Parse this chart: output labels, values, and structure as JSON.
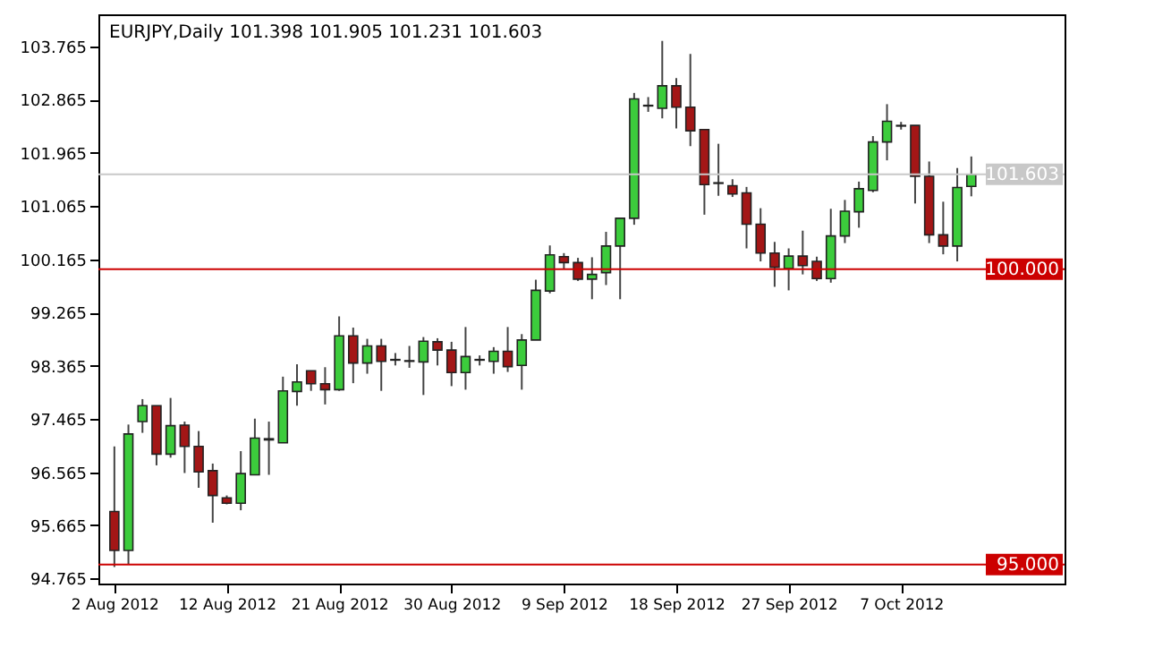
{
  "chart_data": {
    "type": "candlestick",
    "title": "EURJPY,Daily  101.398 101.905 101.231 101.603",
    "categories": [
      "2 Aug 2012",
      null,
      null,
      null,
      null,
      null,
      null,
      null,
      "12 Aug 2012",
      null,
      null,
      null,
      null,
      null,
      null,
      null,
      "21 Aug 2012",
      null,
      null,
      null,
      null,
      null,
      null,
      null,
      "30 Aug 2012",
      null,
      null,
      null,
      null,
      null,
      null,
      null,
      "9 Sep 2012",
      null,
      null,
      null,
      null,
      null,
      null,
      null,
      "18 Sep 2012",
      null,
      null,
      null,
      null,
      null,
      null,
      null,
      "27 Sep 2012",
      null,
      null,
      null,
      null,
      null,
      null,
      null,
      "7 Oct 2012",
      null,
      null,
      null,
      null,
      null
    ],
    "ohlc": [
      [
        95.9,
        97.0,
        94.96,
        95.24
      ],
      [
        95.24,
        97.37,
        95.0,
        97.21
      ],
      [
        97.42,
        97.8,
        97.23,
        97.69
      ],
      [
        97.69,
        97.69,
        96.68,
        96.87
      ],
      [
        96.87,
        97.82,
        96.81,
        97.35
      ],
      [
        97.36,
        97.42,
        96.55,
        97.0
      ],
      [
        97.0,
        97.26,
        96.3,
        96.57
      ],
      [
        96.59,
        96.71,
        95.71,
        96.17
      ],
      [
        96.13,
        96.17,
        96.02,
        96.04
      ],
      [
        96.04,
        96.92,
        95.92,
        96.54
      ],
      [
        96.52,
        97.47,
        96.52,
        97.14
      ],
      [
        97.11,
        97.42,
        96.52,
        97.13
      ],
      [
        97.06,
        98.18,
        97.06,
        97.94
      ],
      [
        97.93,
        98.39,
        97.69,
        98.09
      ],
      [
        98.28,
        98.28,
        97.94,
        98.06
      ],
      [
        98.06,
        98.34,
        97.71,
        97.96
      ],
      [
        97.96,
        99.2,
        97.94,
        98.87
      ],
      [
        98.87,
        99.01,
        98.07,
        98.41
      ],
      [
        98.41,
        98.82,
        98.23,
        98.7
      ],
      [
        98.7,
        98.82,
        97.94,
        98.44
      ],
      [
        98.46,
        98.58,
        98.37,
        98.47
      ],
      [
        98.45,
        98.7,
        98.33,
        98.44
      ],
      [
        98.43,
        98.85,
        97.87,
        98.78
      ],
      [
        98.77,
        98.83,
        98.37,
        98.63
      ],
      [
        98.63,
        98.77,
        98.02,
        98.25
      ],
      [
        98.25,
        99.02,
        97.96,
        98.52
      ],
      [
        98.46,
        98.54,
        98.37,
        98.47
      ],
      [
        98.44,
        98.68,
        98.23,
        98.61
      ],
      [
        98.61,
        99.02,
        98.26,
        98.35
      ],
      [
        98.37,
        98.9,
        97.96,
        98.8
      ],
      [
        98.8,
        99.82,
        98.8,
        99.64
      ],
      [
        99.63,
        100.4,
        99.59,
        100.24
      ],
      [
        100.21,
        100.27,
        100.01,
        100.11
      ],
      [
        100.11,
        100.19,
        99.8,
        99.83
      ],
      [
        99.83,
        100.2,
        99.49,
        99.91
      ],
      [
        99.94,
        100.63,
        99.73,
        100.39
      ],
      [
        100.39,
        100.86,
        99.49,
        100.86
      ],
      [
        100.86,
        102.98,
        100.75,
        102.88
      ],
      [
        102.76,
        102.91,
        102.66,
        102.77
      ],
      [
        102.72,
        103.86,
        102.55,
        103.1
      ],
      [
        103.1,
        103.23,
        102.38,
        102.74
      ],
      [
        102.74,
        103.64,
        102.08,
        102.34
      ],
      [
        102.36,
        102.36,
        100.92,
        101.43
      ],
      [
        101.46,
        102.12,
        101.24,
        101.45
      ],
      [
        101.41,
        101.52,
        101.22,
        101.27
      ],
      [
        101.29,
        101.39,
        100.35,
        100.76
      ],
      [
        100.76,
        101.03,
        100.13,
        100.27
      ],
      [
        100.27,
        100.46,
        99.7,
        100.03
      ],
      [
        100.01,
        100.35,
        99.64,
        100.22
      ],
      [
        100.22,
        100.65,
        99.91,
        100.06
      ],
      [
        100.13,
        100.21,
        99.8,
        99.84
      ],
      [
        99.84,
        101.02,
        99.77,
        100.56
      ],
      [
        100.56,
        101.17,
        100.44,
        100.98
      ],
      [
        100.97,
        101.48,
        100.7,
        101.36
      ],
      [
        101.33,
        102.25,
        101.3,
        102.15
      ],
      [
        102.15,
        102.79,
        101.84,
        102.5
      ],
      [
        102.42,
        102.49,
        102.36,
        102.43
      ],
      [
        102.43,
        102.43,
        101.11,
        101.57
      ],
      [
        101.57,
        101.82,
        100.44,
        100.58
      ],
      [
        100.58,
        101.14,
        100.25,
        100.39
      ],
      [
        100.39,
        101.71,
        100.13,
        101.38
      ],
      [
        101.398,
        101.905,
        101.231,
        101.603
      ]
    ],
    "ylim": [
      94.68,
      104.31
    ],
    "yticks": [
      94.765,
      95.665,
      96.565,
      97.465,
      98.365,
      99.265,
      100.165,
      101.065,
      101.965,
      102.865,
      103.765
    ],
    "ref_lines": [
      {
        "axis": "y",
        "value": 101.603,
        "label": "101.603",
        "color": "#c8c8c8"
      },
      {
        "axis": "y",
        "value": 100,
        "label": "100.000",
        "color": "#cc0000"
      },
      {
        "axis": "y",
        "value": 95,
        "label": "95.000",
        "color": "#cc0000"
      }
    ]
  }
}
